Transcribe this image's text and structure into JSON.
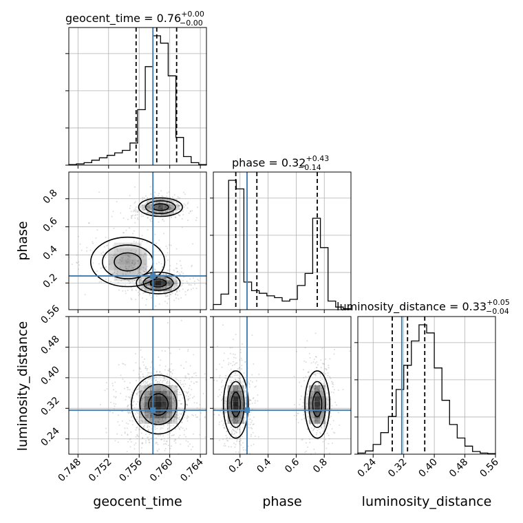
{
  "colors": {
    "truth": "#4682b4",
    "hist": "#000000",
    "grid": "#b0b0b0",
    "scatter": "#9a9a9a"
  },
  "chart_data": {
    "type": "corner",
    "parameters": [
      {
        "name": "geocent_time",
        "label": "geocent_time",
        "title_prefix": "geocent_time = 0.76",
        "title_plus": "+0.00",
        "title_minus": "−0.00",
        "range": [
          0.7468,
          0.7648
        ],
        "ticks": [
          0.748,
          0.752,
          0.756,
          0.76,
          0.764
        ],
        "tick_labels": [
          "0.748",
          "0.752",
          "0.756",
          "0.760",
          "0.764"
        ],
        "truth": 0.7578,
        "quantiles": [
          0.7556,
          0.7583,
          0.7609
        ],
        "hist_counts": [
          1,
          2,
          4,
          8,
          12,
          16,
          20,
          24,
          36,
          90,
          160,
          210,
          198,
          145,
          45,
          14,
          4,
          1
        ]
      },
      {
        "name": "phase",
        "label": "phase",
        "title_prefix": "phase = 0.32",
        "title_plus": "+0.43",
        "title_minus": "−0.14",
        "range": [
          0.01,
          0.99
        ],
        "ticks": [
          0.2,
          0.4,
          0.6,
          0.8
        ],
        "tick_labels": [
          "0.2",
          "0.4",
          "0.6",
          "0.8"
        ],
        "truth": 0.25,
        "quantiles": [
          0.17,
          0.32,
          0.75
        ],
        "hist_counts": [
          6,
          18,
          150,
          140,
          32,
          22,
          19,
          16,
          14,
          10,
          12,
          28,
          42,
          106,
          72,
          10,
          3,
          1
        ]
      },
      {
        "name": "luminosity_distance",
        "label": "luminosity_distance",
        "title_prefix": "luminosity_distance = 0.33",
        "title_plus": "+0.05",
        "title_minus": "−0.04",
        "range": [
          0.2,
          0.56
        ],
        "ticks": [
          0.24,
          0.32,
          0.4,
          0.48,
          0.56
        ],
        "tick_labels": [
          "0.24",
          "0.32",
          "0.40",
          "0.48",
          "0.56"
        ],
        "truth": 0.315,
        "quantiles": [
          0.29,
          0.33,
          0.375
        ],
        "hist_counts": [
          2,
          6,
          18,
          40,
          70,
          120,
          165,
          210,
          240,
          225,
          160,
          100,
          55,
          30,
          15,
          5,
          2,
          1
        ]
      }
    ],
    "y_ticks": {
      "phase": [
        0.2,
        0.4,
        0.6,
        0.8
      ],
      "phase_labels": [
        "0.2",
        "0.4",
        "0.6",
        "0.8"
      ],
      "luminosity_distance": [
        0.24,
        0.32,
        0.4,
        0.48,
        0.56
      ],
      "luminosity_distance_labels": [
        "0.24",
        "0.32",
        "0.40",
        "0.48",
        "0.56"
      ]
    },
    "modes": {
      "geocent_time_phase": [
        {
          "x": 0.7588,
          "y": 0.74,
          "sx": 0.0013,
          "sy": 0.03,
          "w": 0.35
        },
        {
          "x": 0.7585,
          "y": 0.2,
          "sx": 0.0013,
          "sy": 0.035,
          "w": 0.45
        },
        {
          "x": 0.7545,
          "y": 0.35,
          "sx": 0.0022,
          "sy": 0.08,
          "w": 0.2
        }
      ],
      "geocent_time_distance": [
        {
          "x": 0.7585,
          "y": 0.33,
          "sx": 0.0016,
          "sy": 0.035,
          "w": 1.0
        }
      ],
      "phase_distance": [
        {
          "x": 0.17,
          "y": 0.33,
          "sx": 0.04,
          "sy": 0.04,
          "w": 0.58
        },
        {
          "x": 0.75,
          "y": 0.33,
          "sx": 0.04,
          "sy": 0.04,
          "w": 0.42
        }
      ]
    },
    "grid": true
  }
}
